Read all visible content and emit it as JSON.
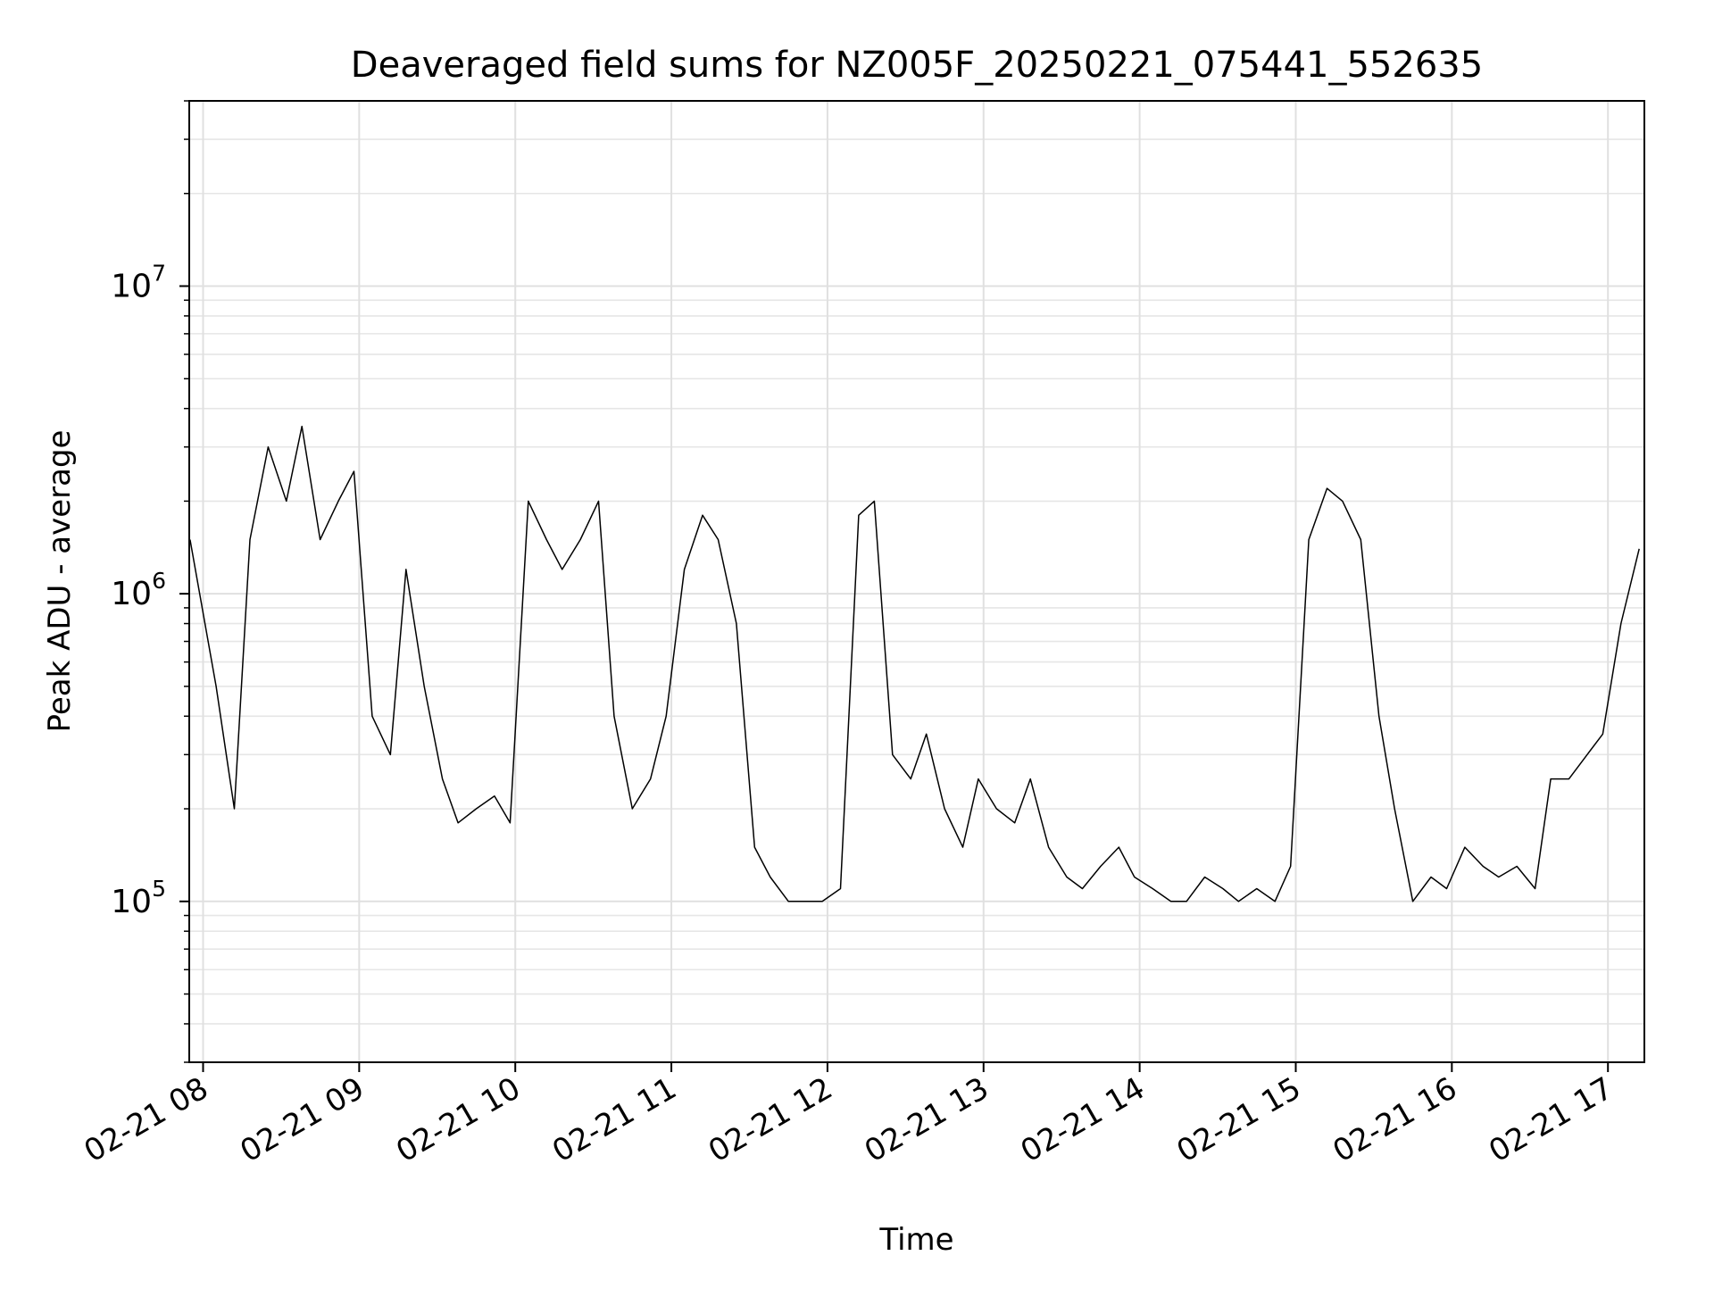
{
  "chart_data": {
    "type": "line",
    "title": "Deaveraged field sums for NZ005F_20250221_075441_552635",
    "xlabel": "Time",
    "ylabel": "Peak ADU - average",
    "y_scale": "log",
    "ylim": [
      30000,
      40000000
    ],
    "xlim": [
      "2025-02-21 07:54:41",
      "2025-02-21 17:14:00"
    ],
    "x_ticks": [
      {
        "time": "2025-02-21 08:00",
        "label": "02-21 08"
      },
      {
        "time": "2025-02-21 09:00",
        "label": "02-21 09"
      },
      {
        "time": "2025-02-21 10:00",
        "label": "02-21 10"
      },
      {
        "time": "2025-02-21 11:00",
        "label": "02-21 11"
      },
      {
        "time": "2025-02-21 12:00",
        "label": "02-21 12"
      },
      {
        "time": "2025-02-21 13:00",
        "label": "02-21 13"
      },
      {
        "time": "2025-02-21 14:00",
        "label": "02-21 14"
      },
      {
        "time": "2025-02-21 15:00",
        "label": "02-21 15"
      },
      {
        "time": "2025-02-21 16:00",
        "label": "02-21 16"
      },
      {
        "time": "2025-02-21 17:00",
        "label": "02-21 17"
      }
    ],
    "y_ticks": [
      {
        "value": 100000,
        "base": "10",
        "exp": "5"
      },
      {
        "value": 1000000,
        "base": "10",
        "exp": "6"
      },
      {
        "value": 10000000,
        "base": "10",
        "exp": "7"
      }
    ],
    "grid": true,
    "legend": "none",
    "line_color": "#000000",
    "series": [
      {
        "x": [
          "07:55",
          "08:05",
          "08:12",
          "08:18",
          "08:25",
          "08:32",
          "08:38",
          "08:45",
          "08:52",
          "08:58",
          "09:05",
          "09:12",
          "09:18",
          "09:25",
          "09:32",
          "09:38",
          "09:45",
          "09:52",
          "09:58",
          "10:05",
          "10:12",
          "10:18",
          "10:25",
          "10:32",
          "10:38",
          "10:45",
          "10:52",
          "10:58",
          "11:05",
          "11:12",
          "11:18",
          "11:25",
          "11:32",
          "11:38",
          "11:45",
          "11:52",
          "11:58",
          "12:05",
          "12:12",
          "12:18",
          "12:25",
          "12:32",
          "12:38",
          "12:45",
          "12:52",
          "12:58",
          "13:05",
          "13:12",
          "13:18",
          "13:25",
          "13:32",
          "13:38",
          "13:45",
          "13:52",
          "13:58",
          "14:05",
          "14:12",
          "14:18",
          "14:25",
          "14:32",
          "14:38",
          "14:45",
          "14:52",
          "14:58",
          "15:05",
          "15:12",
          "15:18",
          "15:25",
          "15:32",
          "15:38",
          "15:45",
          "15:52",
          "15:58",
          "16:05",
          "16:12",
          "16:18",
          "16:25",
          "16:32",
          "16:38",
          "16:45",
          "16:52",
          "16:58",
          "17:05",
          "17:12"
        ],
        "values": [
          1500000,
          500000,
          200000,
          1500000,
          3000000,
          2000000,
          3500000,
          1500000,
          2000000,
          2500000,
          400000,
          300000,
          1200000,
          500000,
          250000,
          180000,
          200000,
          220000,
          180000,
          2000000,
          1500000,
          1200000,
          1500000,
          2000000,
          400000,
          200000,
          250000,
          400000,
          1200000,
          1800000,
          1500000,
          800000,
          150000,
          120000,
          100000,
          100000,
          100000,
          110000,
          1800000,
          2000000,
          300000,
          250000,
          350000,
          200000,
          150000,
          250000,
          200000,
          180000,
          250000,
          150000,
          120000,
          110000,
          130000,
          150000,
          120000,
          110000,
          100000,
          100000,
          120000,
          110000,
          100000,
          110000,
          100000,
          130000,
          1500000,
          2200000,
          2000000,
          1500000,
          400000,
          200000,
          100000,
          120000,
          110000,
          150000,
          130000,
          120000,
          130000,
          110000,
          250000,
          250000,
          300000,
          350000,
          800000,
          1400000
        ]
      }
    ]
  }
}
